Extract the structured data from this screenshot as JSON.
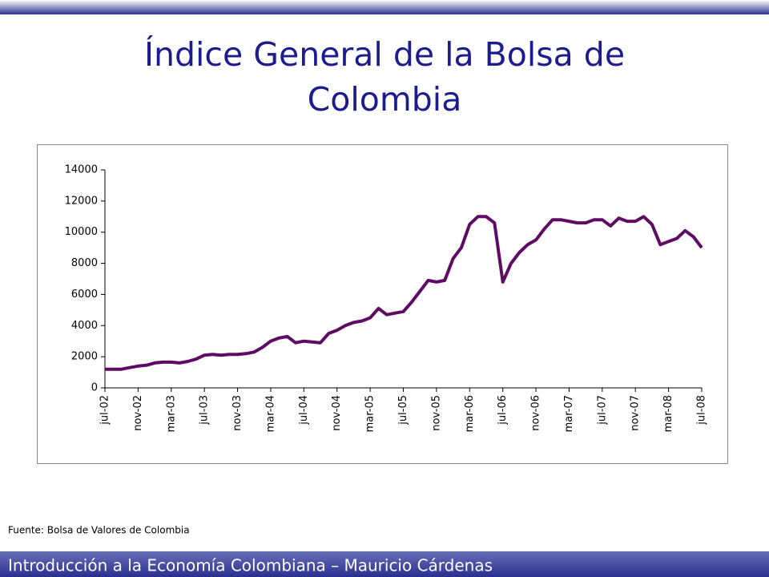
{
  "chart_data": {
    "type": "line",
    "title": "Índice General de la Bolsa de Colombia",
    "source": "Fuente: Bolsa de Valores de Colombia",
    "footer": "Introducción a la Economía Colombiana – Mauricio Cárdenas",
    "categories": [
      "jul-02",
      null,
      null,
      null,
      "nov-02",
      null,
      null,
      null,
      "mar-03",
      null,
      null,
      null,
      "jul-03",
      null,
      null,
      null,
      "nov-03",
      null,
      null,
      null,
      "mar-04",
      null,
      null,
      null,
      "jul-04",
      null,
      null,
      null,
      "nov-04",
      null,
      null,
      null,
      "mar-05",
      null,
      null,
      null,
      "jul-05",
      null,
      null,
      null,
      "nov-05",
      null,
      null,
      null,
      "mar-06",
      null,
      null,
      null,
      "jul-06",
      null,
      null,
      null,
      "nov-06",
      null,
      null,
      null,
      "mar-07",
      null,
      null,
      null,
      "jul-07",
      null,
      null,
      null,
      "nov-07",
      null,
      null,
      null,
      "mar-08",
      null,
      null,
      null,
      "jul-08"
    ],
    "values": [
      1200,
      1200,
      1200,
      1300,
      1400,
      1450,
      1600,
      1650,
      1650,
      1600,
      1700,
      1850,
      2100,
      2150,
      2100,
      2150,
      2150,
      2200,
      2300,
      2600,
      3000,
      3200,
      3300,
      2900,
      3000,
      2950,
      2900,
      3500,
      3700,
      4000,
      4200,
      4300,
      4500,
      5100,
      4700,
      4800,
      4900,
      5500,
      6200,
      6900,
      6800,
      6900,
      8300,
      9000,
      10500,
      11000,
      11000,
      10600,
      6800,
      8000,
      8700,
      9200,
      9500,
      10200,
      10800,
      10800,
      10700,
      10600,
      10600,
      10800,
      10800,
      10400,
      10900,
      10700,
      10700,
      11000,
      10500,
      9200,
      9400,
      9600,
      10100,
      9700,
      9000
    ],
    "color": "#5e0b63",
    "ylim": [
      0,
      14000
    ],
    "yticks": [
      0,
      2000,
      4000,
      6000,
      8000,
      10000,
      12000,
      14000
    ],
    "grid": false
  }
}
